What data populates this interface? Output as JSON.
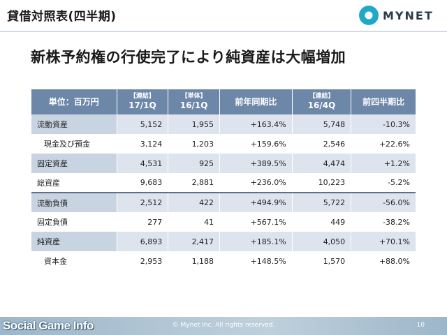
{
  "header": {
    "title": "貸借対照表(四半期)",
    "logo_text": "MYNET"
  },
  "heading": "新株予約権の行使完了により純資産は大幅増加",
  "table": {
    "columns": [
      {
        "line1": "単位：百万円",
        "line2": ""
      },
      {
        "line1": "【連結】",
        "line2": "17/1Q"
      },
      {
        "line1": "【単体】",
        "line2": "16/1Q"
      },
      {
        "line1": "前年同期比",
        "line2": ""
      },
      {
        "line1": "【連結】",
        "line2": "16/4Q"
      },
      {
        "line1": "前四半期比",
        "line2": ""
      }
    ],
    "rows": [
      {
        "label": "流動資産",
        "c1": "5,152",
        "c2": "1,955",
        "c3": "+163.4%",
        "c4": "5,748",
        "c5": "-10.3%"
      },
      {
        "label": "現金及び預金",
        "c1": "3,124",
        "c2": "1,203",
        "c3": "+159.6%",
        "c4": "2,546",
        "c5": "+22.6%"
      },
      {
        "label": "固定資産",
        "c1": "4,531",
        "c2": "925",
        "c3": "+389.5%",
        "c4": "4,474",
        "c5": "+1.2%"
      },
      {
        "label": "総資産",
        "c1": "9,683",
        "c2": "2,881",
        "c3": "+236.0%",
        "c4": "10,223",
        "c5": "-5.2%"
      },
      {
        "label": "流動負債",
        "c1": "2,512",
        "c2": "422",
        "c3": "+494.9%",
        "c4": "5,722",
        "c5": "-56.0%"
      },
      {
        "label": "固定負債",
        "c1": "277",
        "c2": "41",
        "c3": "+567.1%",
        "c4": "449",
        "c5": "-38.2%"
      },
      {
        "label": "純資産",
        "c1": "6,893",
        "c2": "2,417",
        "c3": "+185.1%",
        "c4": "4,050",
        "c5": "+70.1%"
      },
      {
        "label": "資本金",
        "c1": "2,953",
        "c2": "1,188",
        "c3": "+148.5%",
        "c4": "1,570",
        "c5": "+88.0%"
      }
    ]
  },
  "footer": {
    "brand": "Social Game Info",
    "copyright": "© Mynet Inc. All rights reserved.",
    "page_number": "10"
  }
}
